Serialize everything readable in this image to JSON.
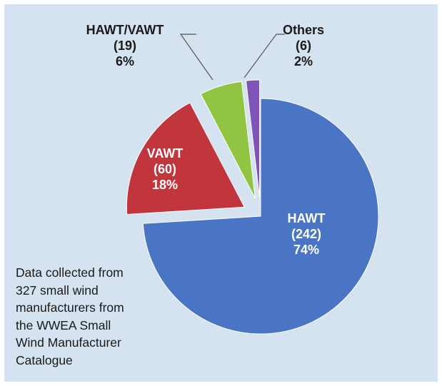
{
  "chart_data": {
    "type": "pie",
    "title": "",
    "categories": [
      "HAWT",
      "VAWT",
      "HAWT/VAWT",
      "Others"
    ],
    "values": [
      242,
      60,
      19,
      6
    ],
    "percent_labels": [
      "74%",
      "18%",
      "6%",
      "2%"
    ],
    "count_labels": [
      "(242)",
      "(60)",
      "(19)",
      "(6)"
    ],
    "colors": [
      "#4a74c4",
      "#c0363c",
      "#92c443",
      "#7e55b6"
    ],
    "exploded": [
      false,
      true,
      true,
      true
    ],
    "label_position": [
      "inside",
      "inside",
      "outside",
      "outside"
    ],
    "leader_lines": [
      false,
      false,
      true,
      true
    ],
    "legend": "none",
    "annotation": "Data collected from\n327 small wind\nmanufacturers from\nthe WWEA Small\nWind Manufacturer\nCatalogue"
  }
}
